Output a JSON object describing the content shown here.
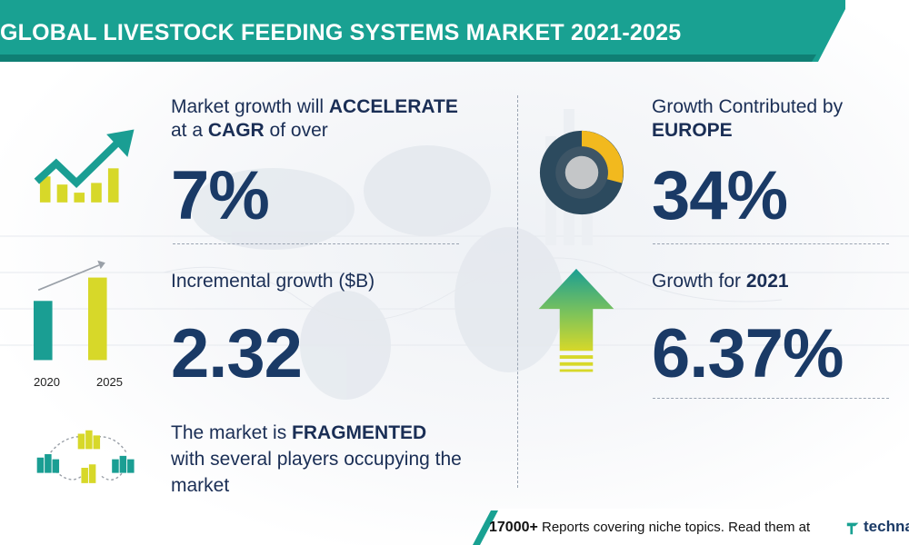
{
  "header": {
    "title": "GLOBAL LIVESTOCK FEEDING SYSTEMS MARKET 2021-2025"
  },
  "cagr": {
    "line1_prefix": "Market growth will ",
    "line1_emph": "ACCELERATE",
    "line2_prefix": "at a ",
    "line2_emph": "CAGR",
    "line2_suffix": " of over",
    "value": "7%"
  },
  "incremental": {
    "label": "Incremental growth ($B)",
    "value": "2.32",
    "year_start": "2020",
    "year_end": "2025"
  },
  "fragmented": {
    "line1_prefix": "The market is ",
    "line1_emph": "FRAGMENTED",
    "line2": "with several players occupying the",
    "line3": "market"
  },
  "region": {
    "line1": "Growth Contributed by",
    "emph": "EUROPE",
    "value": "34%"
  },
  "yoy": {
    "label_prefix": "Growth for ",
    "year": "2021",
    "value": "6.37%"
  },
  "footer": {
    "count": "17000+",
    "text": " Reports covering niche topics. Read them at",
    "brand": "technav"
  },
  "colors": {
    "teal": "#1a9e93",
    "yellow": "#d7d829",
    "navy": "#1a3a66",
    "donut_dark": "#2c4a5e",
    "donut_mid": "#3d5566",
    "donut_yellow": "#f2b91e",
    "donut_gray": "#c4c6c8"
  }
}
